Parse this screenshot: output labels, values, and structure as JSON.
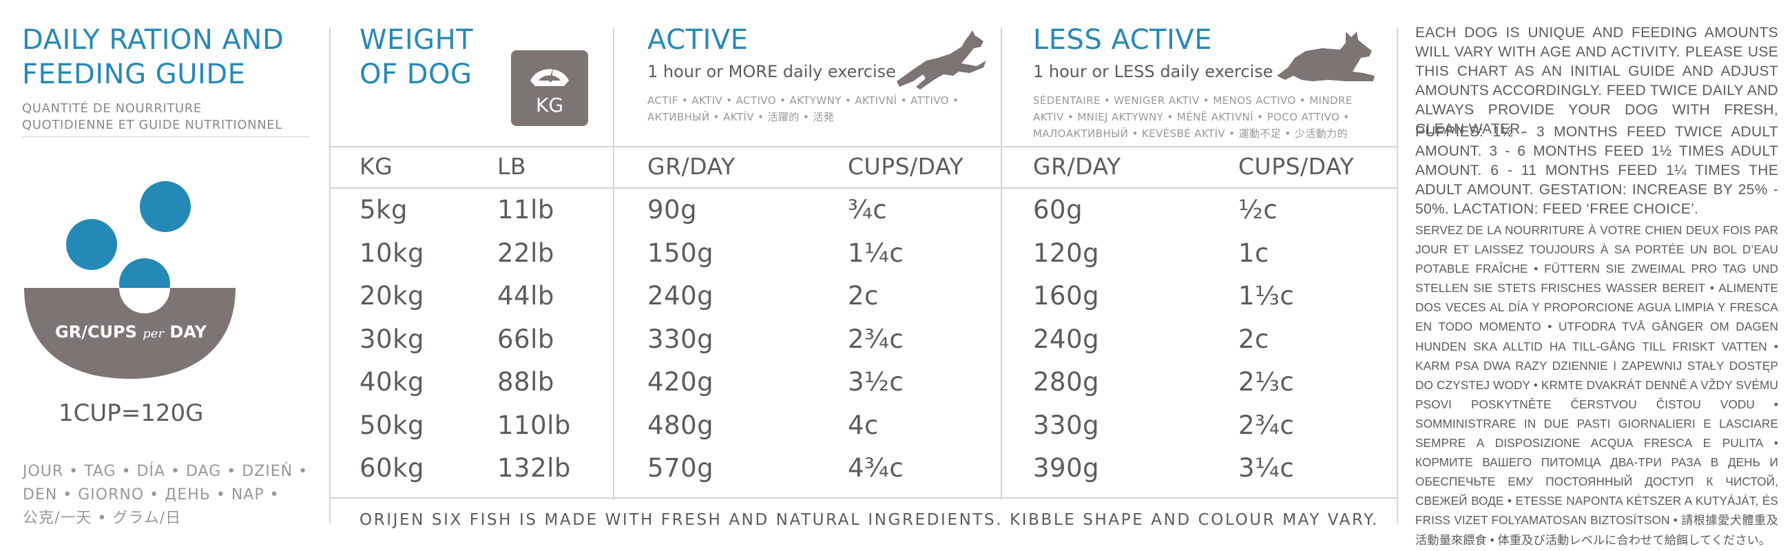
{
  "left": {
    "title_line1": "DAILY RATION AND",
    "title_line2": "FEEDING GUIDE",
    "subtitle_line1": "QUANTITÉ DE NOURRITURE",
    "subtitle_line2": "QUOTIDIENNE ET GUIDE NUTRITIONNEL",
    "bowl_label_a": "GR/CUPS",
    "bowl_label_per": "per",
    "bowl_label_b": "DAY",
    "cup_conversion": "1CUP=120G",
    "days_line1": "JOUR • TAG • DÍA • DAG • DZIEŃ •",
    "days_line2": "DEN • GIORNO • ДЕНЬ • NAP •",
    "days_line3": "公克/一天 • グラム/日",
    "colors": {
      "blue": "#2589b8",
      "bowl": "#7d7573"
    }
  },
  "weight": {
    "title_line1": "WEIGHT",
    "title_line2": "OF DOG",
    "scale_label": "KG",
    "icon": "scale-icon"
  },
  "active": {
    "title": "ACTIVE",
    "subtitle": "1 hour or MORE daily exercise",
    "translations_line1": "ACTIF • AKTIV • ACTIVO • AKTYWNY • AKTIVNÍ • ATTIVO •",
    "translations_line2": "АКТИВНЫЙ • AKTÍV • 活躍的 • 活発",
    "icon": "running-dog-icon"
  },
  "less_active": {
    "title": "LESS ACTIVE",
    "subtitle": "1 hour or LESS daily exercise",
    "translations_line1": "SÉDENTAIRE • WENIGER AKTIV • MENOS ACTIVO • MINDRE",
    "translations_line2": "AKTIV • MNIEJ AKTYWNY • MÉNĚ AKTIVNÍ • POCO ATTIVO •",
    "translations_line3": "МАЛОАКТИВНЫЙ • KEVÉSBÉ AKTÍV • 運動不足 • 少活動力的",
    "icon": "resting-dog-icon"
  },
  "table": {
    "columns": [
      "KG",
      "LB",
      "GR/DAY",
      "CUPS/DAY",
      "GR/DAY",
      "CUPS/DAY"
    ],
    "rows": [
      [
        "5kg",
        "11lb",
        "90g",
        "¾c",
        "60g",
        "½c"
      ],
      [
        "10kg",
        "22lb",
        "150g",
        "1¼c",
        "120g",
        "1c"
      ],
      [
        "20kg",
        "44lb",
        "240g",
        "2c",
        "160g",
        "1⅓c"
      ],
      [
        "30kg",
        "66lb",
        "330g",
        "2¾c",
        "240g",
        "2c"
      ],
      [
        "40kg",
        "88lb",
        "420g",
        "3½c",
        "280g",
        "2⅓c"
      ],
      [
        "50kg",
        "110lb",
        "480g",
        "4c",
        "330g",
        "2¾c"
      ],
      [
        "60kg",
        "132lb",
        "570g",
        "4¾c",
        "390g",
        "3¼c"
      ]
    ]
  },
  "footer": "ORIJEN SIX FISH IS MADE WITH FRESH AND NATURAL INGREDIENTS. KIBBLE SHAPE AND COLOUR MAY VARY.",
  "notes": {
    "main": "EACH DOG IS UNIQUE AND FEEDING AMOUNTS WILL VARY WITH AGE AND ACTIVITY. PLEASE USE THIS CHART AS AN INITIAL GUIDE AND ADJUST AMOUNTS ACCORDINGLY. FEED TWICE DAILY AND ALWAYS PROVIDE YOUR DOG WITH FRESH, CLEAN WATER.",
    "puppies": "PUPPIES: 1½ - 3 MONTHS FEED TWICE ADULT AMOUNT. 3 - 6 MONTHS FEED 1½ TIMES ADULT AMOUNT. 6 - 11 MONTHS FEED 1¼ TIMES THE ADULT AMOUNT. GESTATION: INCREASE BY 25% - 50%. LACTATION: FEED ‘FREE CHOICE’.",
    "translations": "SERVEZ DE LA NOURRITURE À VOTRE CHIEN DEUX FOIS PAR JOUR ET LAISSEZ TOUJOURS À SA PORTÉE UN BOL D’EAU POTABLE FRAÎCHE • FÜTTERN SIE ZWEIMAL PRO TAG UND STELLEN SIE STETS FRISCHES WASSER BEREIT • ALIMENTE DOS VECES AL DÍA Y PROPORCIONE AGUA LIMPIA Y FRESCA EN TODO MOMENTO • UTFODRA TVÅ GÅNGER OM DAGEN HUNDEN SKA ALLTID HA TILL-GÅNG TILL FRISKT VATTEN • KARM PSA DWA RAZY DZIENNIE I ZAPEWNIJ STAŁY DOSTĘP DO CZYSTEJ WODY • KRMTE DVAKRÁT DENNĚ A VŽDY SVÉMU PSOVI POSKYTNĚTE ČERSTVOU ČISTOU VODU • SOMMINISTRARE IN DUE PASTI GIORNALIERI E LASCIARE SEMPRE A DISPOSIZIONE ACQUA FRESCA E PULITA • КОРМИТЕ ВАШЕГО ПИТОМЦА ДВА-ТРИ РАЗА В ДЕНЬ И ОБЕСПЕЧЬТЕ ЕМУ ПОСТОЯННЫЙ ДОСТУП К ЧИСТОЙ, СВЕЖЕЙ ВОДЕ • ETESSE NAPONTA KÉTSZER A KUTYÁJÁT, ÉS FRISS VIZET FOLYAMATOSAN BIZTOSÍTSON • 請根據愛犬體重及活動量來餵食 • 体重及び活動レベルに合わせて給餌してください。"
  }
}
